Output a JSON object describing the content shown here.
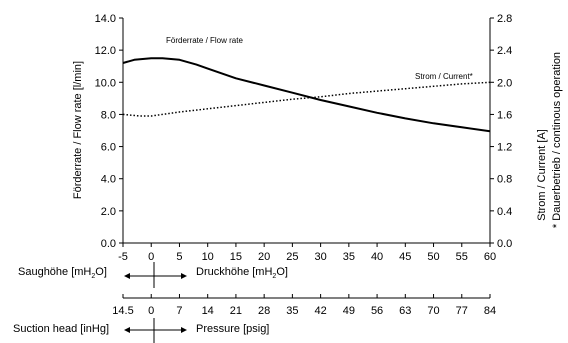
{
  "chart_data": {
    "type": "line",
    "x_axis": {
      "min": -5,
      "max": 60,
      "step": 5,
      "tick_labels": [
        "-5",
        "0",
        "5",
        "10",
        "15",
        "20",
        "25",
        "30",
        "35",
        "40",
        "45",
        "50",
        "55",
        "60"
      ]
    },
    "y_left": {
      "label": "Förderrate / Flow rate [l/min]",
      "min": 0,
      "max": 14,
      "step": 2,
      "tick_labels": [
        "0.0",
        "2.0",
        "4.0",
        "6.0",
        "8.0",
        "10.0",
        "12.0",
        "14.0"
      ]
    },
    "y_right": {
      "label": "Strom / Current [A]",
      "label2": "* Dauerbetrieb / continous operation",
      "min": 0,
      "max": 2.8,
      "step": 0.4,
      "tick_labels": [
        "0.0",
        "0.4",
        "0.8",
        "1.2",
        "1.6",
        "2.0",
        "2.4",
        "2.8"
      ]
    },
    "grid": false,
    "series": [
      {
        "name": "Förderrate / Flow rate",
        "axis": "left",
        "style": "solid",
        "x": [
          -5,
          -3,
          0,
          2,
          5,
          8,
          10,
          15,
          20,
          25,
          30,
          35,
          40,
          45,
          50,
          55,
          60
        ],
        "y": [
          11.2,
          11.4,
          11.5,
          11.5,
          11.4,
          11.1,
          10.85,
          10.25,
          9.8,
          9.35,
          8.9,
          8.5,
          8.1,
          7.75,
          7.45,
          7.2,
          6.95
        ]
      },
      {
        "name": "Strom / Current*",
        "axis": "right",
        "style": "dotted",
        "x": [
          -5,
          -2,
          0,
          2,
          5,
          10,
          15,
          20,
          25,
          30,
          35,
          40,
          45,
          50,
          55,
          60
        ],
        "y": [
          1.6,
          1.58,
          1.58,
          1.6,
          1.63,
          1.67,
          1.71,
          1.75,
          1.79,
          1.82,
          1.86,
          1.89,
          1.92,
          1.95,
          1.98,
          2.0
        ]
      }
    ],
    "annotations": [
      "Förderrate / Flow rate",
      "Strom / Current*"
    ]
  },
  "metric_scale": {
    "left_label": "Saughöhe [mH",
    "left_sub": "2",
    "left_end": "O]",
    "right_label": "Druckhöhe [mH",
    "right_sub": "2",
    "right_end": "O]"
  },
  "imperial_scale": {
    "tick_labels": [
      "14.5",
      "0",
      "7",
      "14",
      "21",
      "28",
      "35",
      "42",
      "49",
      "56",
      "63",
      "70",
      "77",
      "84"
    ],
    "left_label": "Suction head [inHg]",
    "right_label": "Pressure [psig]"
  }
}
